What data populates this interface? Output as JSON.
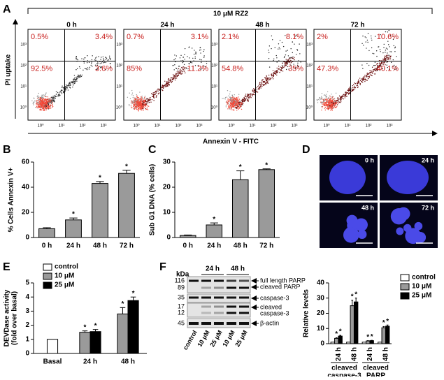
{
  "panel_labels": [
    "A",
    "B",
    "C",
    "D",
    "E",
    "F"
  ],
  "flow": {
    "header": "10 μM RZ2",
    "y_label": "PI uptake",
    "x_label": "Annexin V - FITC",
    "axis_ticks": [
      "10⁰",
      "10¹",
      "10²",
      "10³"
    ],
    "plots": [
      {
        "time": "0 h",
        "quadrants": [
          "0.5%",
          "3.4%",
          "92.5%",
          "3.6%"
        ]
      },
      {
        "time": "24 h",
        "quadrants": [
          "0.7%",
          "3.1%",
          "85%",
          "11.2%"
        ]
      },
      {
        "time": "48 h",
        "quadrants": [
          "2.1%",
          "8.1%",
          "54.8%",
          "35%"
        ]
      },
      {
        "time": "72 h",
        "quadrants": [
          "2%",
          "10.6%",
          "47.3%",
          "40.1%"
        ]
      }
    ]
  },
  "microscopy": {
    "times": [
      "0 h",
      "24 h",
      "48 h",
      "72 h"
    ]
  },
  "blot": {
    "unit": "kDa",
    "times": [
      "24 h",
      "48 h"
    ],
    "lanes": [
      "control",
      "10 μM",
      "25 μM",
      "10 μM",
      "25 μM"
    ],
    "markers": [
      "116",
      "89",
      "35",
      "17",
      "12",
      "45"
    ],
    "bands": [
      [
        "full length PARP"
      ],
      [
        "cleaved PARP"
      ],
      [
        "caspase-3"
      ],
      [
        "cleaved",
        "caspase-3"
      ],
      [
        "β-actin"
      ]
    ]
  },
  "chart_data": [
    {
      "type": "bar",
      "y_label": [
        "% Cells Annexin V+"
      ],
      "categories": [
        "0 h",
        "24 h",
        "48 h",
        "72 h"
      ],
      "values": [
        7,
        14,
        43,
        51
      ],
      "errors": [
        0.8,
        1.5,
        1.5,
        2.5
      ],
      "significance": [
        null,
        "*",
        "*",
        "*"
      ],
      "color": "#9a9a9a",
      "ylim": [
        0,
        60
      ],
      "yticks": [
        0,
        20,
        40,
        60
      ]
    },
    {
      "type": "bar",
      "y_label": [
        "Sub G1 DNA (% cells)"
      ],
      "categories": [
        "0 h",
        "24 h",
        "48 h",
        "72 h"
      ],
      "values": [
        0.8,
        5,
        23,
        27
      ],
      "errors": [
        0.2,
        0.8,
        3.5,
        0.3
      ],
      "significance": [
        null,
        "*",
        "*",
        "*"
      ],
      "color": "#9a9a9a",
      "ylim": [
        0,
        30
      ],
      "yticks": [
        0,
        10,
        20,
        30
      ]
    },
    {
      "type": "bar",
      "y_label": [
        "DEVDase activity",
        "(fold over basal)"
      ],
      "categories": [
        "Basal",
        "24 h",
        "48 h"
      ],
      "ylim": [
        0,
        5
      ],
      "yticks": [
        0,
        1,
        2,
        3,
        4,
        5
      ],
      "series": [
        {
          "name": "control",
          "color": "#ffffff",
          "values": [
            1,
            null,
            null
          ]
        },
        {
          "name": "10 μM",
          "color": "#9a9a9a",
          "values": [
            null,
            1.5,
            2.8
          ],
          "errors": [
            null,
            0.1,
            0.45
          ],
          "significance": [
            null,
            "*",
            "*"
          ]
        },
        {
          "name": "25 μM",
          "color": "#000000",
          "values": [
            null,
            1.55,
            3.75
          ],
          "errors": [
            null,
            0.15,
            0.25
          ],
          "significance": [
            null,
            "*",
            "*"
          ]
        }
      ]
    },
    {
      "type": "bar",
      "y_label": [
        "Relative levels"
      ],
      "categories": [
        "24 h",
        "48 h",
        "24 h",
        "48 h"
      ],
      "group_labels": [
        [
          "cleaved",
          "caspase-3"
        ],
        [
          "cleaved",
          "PARP"
        ]
      ],
      "ylim": [
        0,
        40
      ],
      "yticks": [
        0,
        10,
        20,
        30,
        40
      ],
      "series": [
        {
          "name": "control",
          "color": "#ffffff",
          "values": [
            1,
            1,
            1,
            1
          ]
        },
        {
          "name": "10 μM",
          "color": "#9a9a9a",
          "values": [
            3.5,
            25,
            1.8,
            10.5
          ],
          "errors": [
            0.4,
            3.5,
            0.2,
            0.8
          ],
          "significance": [
            "*",
            "*",
            "*",
            "*"
          ]
        },
        {
          "name": "25 μM",
          "color": "#000000",
          "values": [
            5,
            27.5,
            2,
            11.5
          ],
          "errors": [
            0.5,
            2.5,
            0.2,
            0.8
          ],
          "significance": [
            "*",
            "*",
            "*",
            "*"
          ]
        }
      ]
    }
  ]
}
